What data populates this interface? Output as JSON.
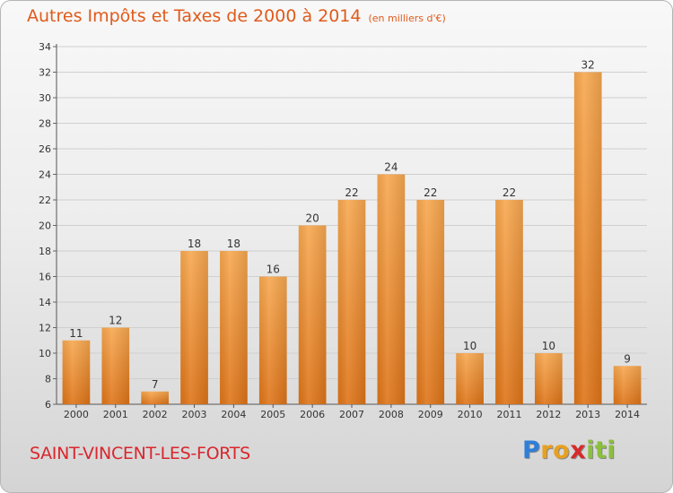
{
  "chart_data": {
    "type": "bar",
    "title": "Autres Impôts et Taxes de 2000 à 2014",
    "unit": "(en milliers d'€)",
    "categories": [
      "2000",
      "2001",
      "2002",
      "2003",
      "2004",
      "2005",
      "2006",
      "2007",
      "2008",
      "2009",
      "2010",
      "2011",
      "2012",
      "2013",
      "2014"
    ],
    "values": [
      11,
      12,
      7,
      18,
      18,
      16,
      20,
      22,
      24,
      22,
      10,
      22,
      10,
      32,
      9
    ],
    "data_labels": [
      "11",
      "12",
      "7",
      "18",
      "18",
      "16",
      "20",
      "22",
      "24",
      "22",
      "10",
      "22",
      "10",
      "32",
      "9"
    ],
    "ylim": [
      6,
      34
    ],
    "yticks": [
      6,
      8,
      10,
      12,
      14,
      16,
      18,
      20,
      22,
      24,
      26,
      28,
      30,
      32,
      34
    ],
    "grid": true,
    "bar_color": "#f08c30",
    "xlabel": "",
    "ylabel": ""
  },
  "footer": {
    "commune": "SAINT-VINCENT-LES-FORTS",
    "logo_letters": [
      "P",
      "r",
      "o",
      "x",
      "i",
      "t",
      "i"
    ],
    "logo_colors": [
      "#2f7ed8",
      "#e8a020",
      "#e8a020",
      "#d62b2b",
      "#8cbf3f",
      "#8cbf3f",
      "#8cbf3f"
    ]
  }
}
